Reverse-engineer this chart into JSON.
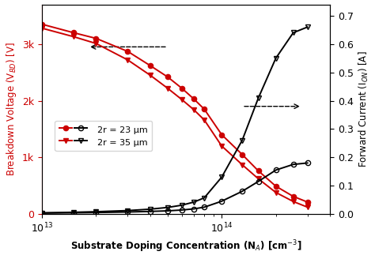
{
  "xlabel": "Substrate Doping Concentration (N$_{A}$) [cm$^{-3}$]",
  "ylabel_left": "Breakdown Voltage (V$_{BD}$) [V]",
  "ylabel_right": "Forward Current (I$_{ON}$) [A]",
  "xlim_log": [
    10000000000000.0,
    400000000000000.0
  ],
  "ylim_left": [
    0,
    3700
  ],
  "ylim_right": [
    0.0,
    0.74
  ],
  "yticks_left": [
    0,
    1000,
    2000,
    3000
  ],
  "ytick_labels_left": [
    "0",
    "1k",
    "2k",
    "3k"
  ],
  "yticks_right": [
    0.0,
    0.1,
    0.2,
    0.3,
    0.4,
    0.5,
    0.6,
    0.7
  ],
  "NA_vbd": [
    10000000000000.0,
    15000000000000.0,
    20000000000000.0,
    30000000000000.0,
    40000000000000.0,
    50000000000000.0,
    60000000000000.0,
    70000000000000.0,
    80000000000000.0,
    100000000000000.0,
    130000000000000.0,
    160000000000000.0,
    200000000000000.0,
    250000000000000.0,
    300000000000000.0
  ],
  "vbd_23um": [
    3350,
    3200,
    3100,
    2870,
    2620,
    2420,
    2220,
    2030,
    1850,
    1400,
    1050,
    760,
    490,
    310,
    210
  ],
  "vbd_35um": [
    3280,
    3130,
    3010,
    2720,
    2450,
    2220,
    2020,
    1840,
    1660,
    1200,
    870,
    620,
    380,
    220,
    120
  ],
  "NA_ion": [
    10000000000000.0,
    15000000000000.0,
    20000000000000.0,
    30000000000000.0,
    40000000000000.0,
    50000000000000.0,
    60000000000000.0,
    70000000000000.0,
    80000000000000.0,
    100000000000000.0,
    130000000000000.0,
    160000000000000.0,
    200000000000000.0,
    250000000000000.0,
    300000000000000.0
  ],
  "ion_23um": [
    0.003,
    0.004,
    0.005,
    0.007,
    0.009,
    0.011,
    0.014,
    0.018,
    0.024,
    0.045,
    0.08,
    0.115,
    0.155,
    0.175,
    0.18
  ],
  "ion_35um": [
    0.004,
    0.006,
    0.008,
    0.012,
    0.017,
    0.023,
    0.031,
    0.042,
    0.057,
    0.13,
    0.26,
    0.41,
    0.55,
    0.64,
    0.66
  ],
  "color_red": "#CC0000",
  "color_black": "#000000",
  "color_bg": "#ffffff"
}
